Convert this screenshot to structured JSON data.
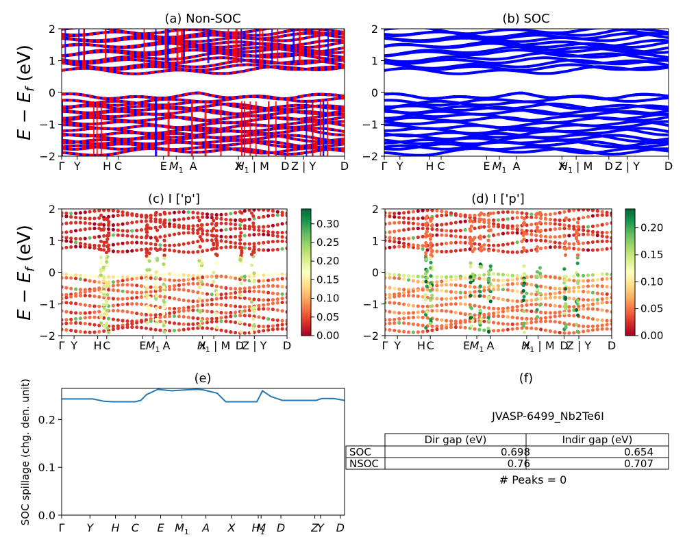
{
  "panels": {
    "a": {
      "title": "(a) Non-SOC"
    },
    "b": {
      "title": "(b) SOC"
    },
    "c": {
      "title": "(c)  I ['p']"
    },
    "d": {
      "title": "(d) I ['p']"
    },
    "e": {
      "title": "(e)"
    },
    "f": {
      "title": "(f)"
    }
  },
  "ylabel_energy": "E − E_f (eV)",
  "ylabel_spillage": "SOC spillage (chg. den. unit)",
  "band_ticks": [
    "Γ",
    "Y",
    "H",
    "C",
    "E",
    "M1",
    "A",
    "X",
    "H1 | M",
    "D",
    "Z | Y",
    "D"
  ],
  "band_ticks_c": [
    "Γ",
    "Y",
    "H",
    "C",
    "E",
    "M1",
    "A",
    "X",
    "H1 | M",
    "D",
    "Z | Y",
    "D"
  ],
  "spill_ticks": [
    "Γ",
    "Y",
    "H",
    "C",
    "E",
    "M1",
    "A",
    "X",
    "H1",
    "M",
    "D",
    "Z",
    "Y",
    "D"
  ],
  "colors": {
    "nonsoc_red": "#ff0000",
    "nonsoc_blue": "#0000ff",
    "soc_blue": "#0000ff",
    "spillage_line": "#1f77b4"
  },
  "colorbar_c": {
    "ticks": [
      "0.00",
      "0.05",
      "0.10",
      "0.15",
      "0.20",
      "0.25",
      "0.30"
    ],
    "max": 0.34
  },
  "colorbar_d": {
    "ticks": [
      "0.00",
      "0.05",
      "0.10",
      "0.15",
      "0.20"
    ],
    "max": 0.235
  },
  "table": {
    "id_text": "JVASP-6499_Nb2Te6I",
    "col_labels": [
      "Dir gap (eV)",
      "Indir gap (eV)"
    ],
    "rows": [
      {
        "label": "SOC",
        "dir": "0.698",
        "indir": "0.654"
      },
      {
        "label": "NSOC",
        "dir": "0.76",
        "indir": "0.707"
      }
    ],
    "peaks_text": "# Peaks = 0"
  },
  "chart_data": [
    {
      "type": "line",
      "title": "(a) Non-SOC",
      "ylabel": "E − E_f (eV)",
      "ylim": [
        -2,
        2
      ],
      "x_ticks": [
        "Γ",
        "Y",
        "H",
        "C",
        "E",
        "M1",
        "A",
        "X",
        "H1 | M",
        "D",
        "Z | Y",
        "D"
      ],
      "series": [
        {
          "values": [
            0.72,
            0.92,
            1.15,
            1.35,
            1.52,
            1.72,
            1.88,
            -0.05,
            -0.22,
            -0.45,
            -0.62,
            -0.82,
            -1.05,
            -1.25,
            -1.45,
            -1.62,
            -1.82
          ]
        }
      ]
    },
    {
      "type": "line",
      "title": "(b) SOC",
      "ylim": [
        -2,
        2
      ],
      "x_ticks": [
        "Γ",
        "Y",
        "H",
        "C",
        "E",
        "M1",
        "A",
        "X",
        "H1 | M",
        "D",
        "Z | Y",
        "D"
      ],
      "series": [
        {
          "values": [
            0.72,
            0.92,
            1.15,
            1.35,
            1.52,
            1.72,
            1.88,
            -0.05,
            -0.22,
            -0.45,
            -0.62,
            -0.82,
            -1.05,
            -1.25,
            -1.45,
            -1.62,
            -1.82
          ]
        }
      ]
    },
    {
      "type": "scatter",
      "title": "(c)  I ['p']",
      "ylabel": "E − E_f (eV)",
      "ylim": [
        -2,
        2
      ],
      "colorbar_range": [
        0,
        0.34
      ],
      "x_ticks": [
        "Γ",
        "Y",
        "H",
        "C",
        "E",
        "M1",
        "A",
        "X",
        "H1 | M",
        "D",
        "Z | Y",
        "D"
      ]
    },
    {
      "type": "scatter",
      "title": "(d) I ['p']",
      "ylim": [
        -2,
        2
      ],
      "colorbar_range": [
        0,
        0.235
      ],
      "x_ticks": [
        "Γ",
        "Y",
        "H",
        "C",
        "E",
        "M1",
        "A",
        "X",
        "H1 | M",
        "D",
        "Z | Y",
        "D"
      ]
    },
    {
      "type": "line",
      "title": "(e)",
      "ylabel": "SOC spillage (chg. den. unit)",
      "ylim": [
        0,
        0.265
      ],
      "x_ticks": [
        "Γ",
        "Y",
        "H",
        "C",
        "E",
        "M1",
        "A",
        "X",
        "H1",
        "M",
        "D",
        "Z",
        "Y",
        "D"
      ],
      "x": [
        0,
        0.06,
        0.11,
        0.15,
        0.18,
        0.22,
        0.26,
        0.28,
        0.3,
        0.34,
        0.39,
        0.44,
        0.48,
        0.5,
        0.55,
        0.58,
        0.66,
        0.69,
        0.71,
        0.74,
        0.78,
        0.82,
        0.9,
        0.92,
        0.96,
        1.0
      ],
      "series": [
        {
          "values": [
            0.243,
            0.243,
            0.243,
            0.238,
            0.237,
            0.237,
            0.237,
            0.24,
            0.252,
            0.263,
            0.26,
            0.262,
            0.263,
            0.262,
            0.255,
            0.237,
            0.237,
            0.237,
            0.26,
            0.248,
            0.24,
            0.24,
            0.24,
            0.244,
            0.244,
            0.24
          ]
        }
      ]
    }
  ]
}
